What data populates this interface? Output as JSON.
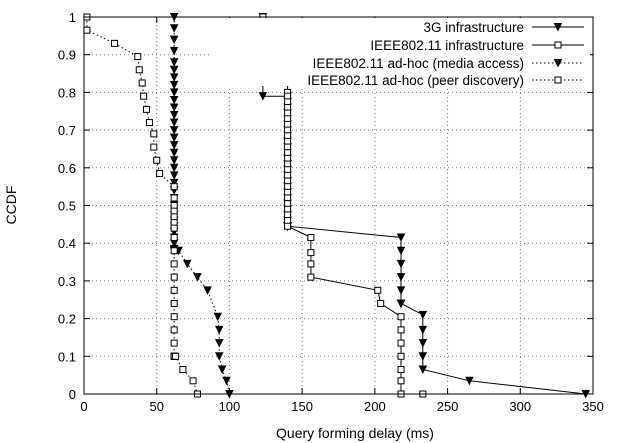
{
  "chart_data": {
    "type": "line",
    "title": "",
    "xlabel": "Query forming delay (ms)",
    "ylabel": "CCDF",
    "xlim": [
      0,
      350
    ],
    "ylim": [
      0,
      1
    ],
    "xticks": [
      0,
      50,
      100,
      150,
      200,
      250,
      300,
      350
    ],
    "yticks": [
      0,
      0.1,
      0.2,
      0.3,
      0.4,
      0.5,
      0.6,
      0.7,
      0.8,
      0.9,
      1
    ],
    "grid": true,
    "legend_position": "top-right",
    "series": [
      {
        "name": "3G infrastructure",
        "line_style": "solid",
        "marker": "triangle-down",
        "x": [
          123,
          123,
          123,
          123,
          123,
          140,
          140,
          140,
          140,
          140,
          140,
          140,
          140,
          140,
          140,
          140,
          140,
          140,
          140,
          140,
          140,
          140,
          140,
          140,
          140,
          140,
          140,
          140,
          140,
          140,
          140,
          140,
          140,
          140,
          140,
          140,
          140,
          140,
          140,
          140,
          218,
          218,
          218,
          218,
          218,
          218,
          218,
          218,
          218,
          233,
          233,
          233,
          233,
          233,
          265,
          345
        ],
        "y": [
          1,
          0.955,
          0.91,
          0.86,
          0.79,
          0.79,
          0.775,
          0.76,
          0.745,
          0.73,
          0.715,
          0.7,
          0.685,
          0.67,
          0.655,
          0.64,
          0.625,
          0.61,
          0.595,
          0.58,
          0.565,
          0.55,
          0.535,
          0.52,
          0.505,
          0.49,
          0.475,
          0.46,
          0.445,
          0.445,
          0.445,
          0.445,
          0.445,
          0.445,
          0.445,
          0.445,
          0.445,
          0.445,
          0.445,
          0.445,
          0.415,
          0.38,
          0.345,
          0.31,
          0.275,
          0.24,
          0.24,
          0.24,
          0.24,
          0.21,
          0.17,
          0.135,
          0.1,
          0.065,
          0.035,
          0
        ]
      },
      {
        "name": "IEEE802.11 infrastructure",
        "line_style": "solid",
        "marker": "square",
        "x": [
          123,
          123,
          123,
          123,
          140,
          140,
          140,
          140,
          140,
          140,
          140,
          140,
          140,
          140,
          140,
          140,
          140,
          140,
          140,
          140,
          140,
          140,
          140,
          140,
          140,
          140,
          140,
          140,
          140,
          140,
          156,
          156,
          156,
          156,
          202,
          204,
          218,
          218,
          218,
          218,
          218,
          218,
          218,
          233
        ],
        "y": [
          1,
          0.96,
          0.92,
          0.88,
          0.84,
          0.8,
          0.79,
          0.775,
          0.76,
          0.745,
          0.73,
          0.715,
          0.7,
          0.685,
          0.67,
          0.655,
          0.64,
          0.625,
          0.61,
          0.595,
          0.58,
          0.565,
          0.55,
          0.535,
          0.52,
          0.505,
          0.49,
          0.475,
          0.46,
          0.445,
          0.415,
          0.375,
          0.345,
          0.31,
          0.275,
          0.24,
          0.205,
          0.17,
          0.135,
          0.1,
          0.065,
          0.035,
          0,
          0
        ]
      },
      {
        "name": "IEEE802.11 ad-hoc (media access)",
        "line_style": "dotted",
        "marker": "triangle-down",
        "x": [
          62,
          62,
          62,
          62,
          62,
          62,
          62,
          62,
          62,
          62,
          62,
          62,
          62,
          62,
          62,
          62,
          62,
          62,
          62,
          62,
          62,
          62,
          62,
          62,
          62,
          62,
          62,
          62,
          62,
          62,
          62,
          62,
          62,
          62,
          62,
          62,
          62,
          62,
          62,
          62,
          62,
          65,
          71,
          78,
          85,
          92,
          93,
          93,
          93,
          95,
          98,
          100
        ],
        "y": [
          1,
          0.97,
          0.94,
          0.91,
          0.88,
          0.86,
          0.84,
          0.82,
          0.8,
          0.78,
          0.76,
          0.74,
          0.72,
          0.7,
          0.68,
          0.66,
          0.64,
          0.62,
          0.6,
          0.58,
          0.56,
          0.54,
          0.52,
          0.5,
          0.49,
          0.475,
          0.46,
          0.445,
          0.43,
          0.415,
          0.4,
          0.385,
          0.38,
          0.38,
          0.38,
          0.38,
          0.38,
          0.38,
          0.38,
          0.38,
          0.38,
          0.38,
          0.345,
          0.31,
          0.275,
          0.205,
          0.17,
          0.135,
          0.1,
          0.065,
          0.035,
          0
        ]
      },
      {
        "name": "IEEE802.11 ad-hoc (peer discovery)",
        "line_style": "dotted",
        "marker": "square",
        "x": [
          2,
          2,
          21,
          37,
          38,
          40,
          41,
          43,
          45,
          48,
          48,
          50,
          52,
          62,
          62,
          62,
          62,
          62,
          62,
          62,
          62,
          62,
          62,
          62,
          62,
          62,
          62,
          62,
          62,
          62,
          62,
          62,
          62,
          62,
          62,
          62,
          62,
          63,
          68,
          75,
          78
        ],
        "y": [
          1,
          0.965,
          0.93,
          0.895,
          0.86,
          0.825,
          0.79,
          0.755,
          0.72,
          0.69,
          0.655,
          0.62,
          0.585,
          0.55,
          0.52,
          0.5,
          0.485,
          0.47,
          0.455,
          0.44,
          0.415,
          0.38,
          0.345,
          0.31,
          0.275,
          0.24,
          0.205,
          0.17,
          0.135,
          0.1,
          0.1,
          0.1,
          0.1,
          0.1,
          0.1,
          0.1,
          0.1,
          0.1,
          0.065,
          0.035,
          0
        ]
      }
    ]
  }
}
